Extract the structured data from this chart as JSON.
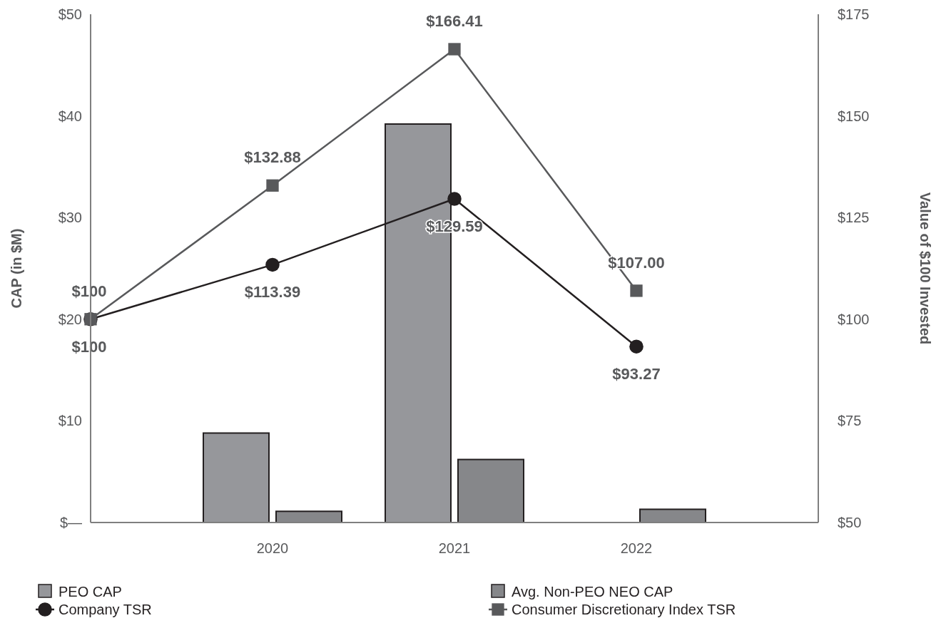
{
  "chart_data": {
    "type": "bar",
    "ylabel": "CAP (in $M)",
    "y2label": "Value of $100 Invested",
    "categories": [
      null,
      "2020",
      "2021",
      "2022",
      null
    ],
    "ylim": [
      0,
      50
    ],
    "yticks": [
      {
        "value": 0,
        "label": "$—"
      },
      {
        "value": 10,
        "label": "$10"
      },
      {
        "value": 20,
        "label": "$20"
      },
      {
        "value": 30,
        "label": "$30"
      },
      {
        "value": 40,
        "label": "$40"
      },
      {
        "value": 50,
        "label": "$50"
      }
    ],
    "y2lim": [
      50,
      175
    ],
    "y2ticks": [
      {
        "value": 50,
        "label": "$50"
      },
      {
        "value": 75,
        "label": "$75"
      },
      {
        "value": 100,
        "label": "$100"
      },
      {
        "value": 125,
        "label": "$125"
      },
      {
        "value": 150,
        "label": "$150"
      },
      {
        "value": 175,
        "label": "$175"
      }
    ],
    "grid": false,
    "legend": "bottom",
    "series": [
      {
        "name": "PEO CAP",
        "color": "#96979b",
        "values": [
          null,
          8.8,
          39.2,
          null,
          null
        ]
      },
      {
        "name": "Avg. Non-PEO NEO CAP",
        "color": "#86878a",
        "values": [
          null,
          1.1,
          6.2,
          1.3,
          null
        ]
      },
      {
        "name": "Company TSR",
        "type": "line",
        "axis": "y2",
        "color": "#231f20",
        "marker": "circle",
        "values": [
          100,
          113.39,
          129.59,
          93.27,
          null
        ],
        "value_labels": [
          "$100",
          "$113.39",
          "$129.59",
          "$93.27",
          null
        ]
      },
      {
        "name": "Consumer Discretionary Index TSR",
        "type": "line",
        "axis": "y2",
        "color": "#58595b",
        "marker": "square",
        "values": [
          100,
          132.88,
          166.41,
          107.0,
          null
        ],
        "value_labels": [
          "$100",
          "$132.88",
          "$166.41",
          "$107.00",
          null
        ]
      }
    ]
  }
}
